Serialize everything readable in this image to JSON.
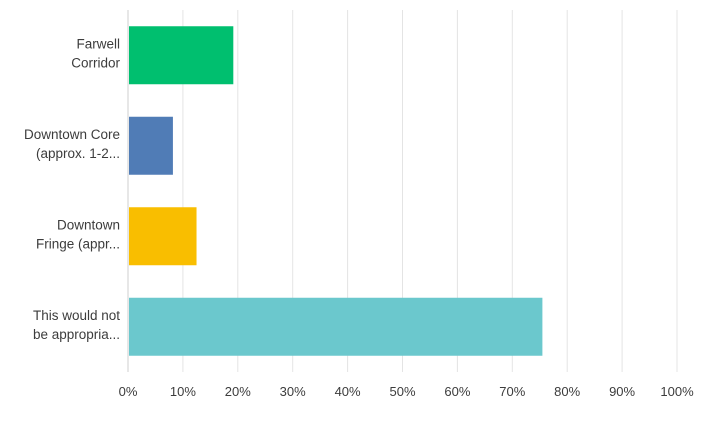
{
  "chart_data": {
    "type": "bar",
    "orientation": "horizontal",
    "categories": [
      [
        "Farwell",
        "Corridor"
      ],
      [
        "Downtown Core",
        "(approx. 1-2..."
      ],
      [
        "Downtown",
        "Fringe (appr..."
      ],
      [
        "This would not",
        "be appropria..."
      ]
    ],
    "values": [
      19,
      8,
      12.3,
      75.3
    ],
    "colors": [
      "#00bf6f",
      "#507cb6",
      "#f9be00",
      "#6bc8cd"
    ],
    "xlim": [
      0,
      100
    ],
    "xticks": [
      "0%",
      "10%",
      "20%",
      "30%",
      "40%",
      "50%",
      "60%",
      "70%",
      "80%",
      "90%",
      "100%"
    ],
    "grid": true,
    "legend": "none"
  }
}
